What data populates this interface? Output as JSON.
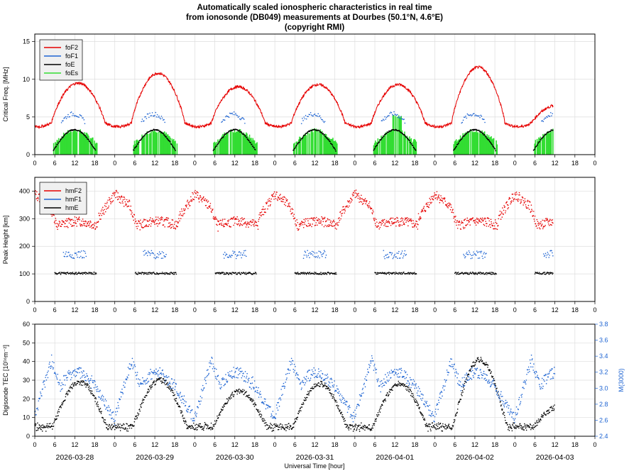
{
  "chart_data": [
    {
      "type": "line",
      "title_lines": [
        "Automatically scaled ionospheric characteristics in real time",
        "from ionosonde (DB049) measurements at Dourbes (50.1°N, 4.6°E)",
        "(copyright RMI)"
      ],
      "ylabel": "Critical Freq. [MHz]",
      "ylim": [
        0,
        16
      ],
      "yticks": [
        "0",
        "5",
        "10",
        "15"
      ],
      "xticks": [
        "0",
        "6",
        "12",
        "18",
        "0",
        "6",
        "12",
        "18",
        "0",
        "6",
        "12",
        "18",
        "0",
        "6",
        "12",
        "18",
        "0",
        "6",
        "12",
        "18",
        "0",
        "6",
        "12",
        "18",
        "0",
        "6",
        "12",
        "18",
        "0"
      ],
      "legend": [
        "foF2",
        "foF1",
        "foE",
        "foEs"
      ],
      "legend_position": "top-left",
      "series_colors": {
        "foF2": "#e60000",
        "foF1": "#1e64d2",
        "foE": "#000000",
        "foEs": "#33dd33"
      },
      "series_notes": {
        "foF2": "daily cycle ~4 MHz at night to ~9-11.5 MHz at noon",
        "foF1": "~4.5-5.5 MHz during daytime",
        "foE": "daytime arc peaking ~3.3 MHz",
        "foEs": "daytime filled bars ~2-3 MHz"
      },
      "daily_max_foF2": [
        9.5,
        10.8,
        9.0,
        9.3,
        9.3,
        11.6,
        6.6
      ]
    },
    {
      "type": "scatter",
      "ylabel": "Peak Height [km]",
      "ylim": [
        0,
        450
      ],
      "yticks": [
        "0",
        "100",
        "200",
        "300",
        "400"
      ],
      "legend": [
        "hmF2",
        "hmF1",
        "hmE"
      ],
      "legend_position": "top-left",
      "series_colors": {
        "hmF2": "#e60000",
        "hmF1": "#1e64d2",
        "hmE": "#000000"
      },
      "series_notes": {
        "hmF2": "~270-280 km by day, ~350-420 km at night",
        "hmF1": "~170-180 km daytime",
        "hmE": "~100 km daytime"
      }
    },
    {
      "type": "scatter",
      "ylabel_left": "Digisonde TEC [10¹⁶m⁻²]",
      "ylabel_right": "M(3000)",
      "xlabel": "Universal Time [hour]",
      "ylim_left": [
        0,
        60
      ],
      "yticks_left": [
        "0",
        "10",
        "20",
        "30",
        "40",
        "50",
        "60"
      ],
      "ylim_right": [
        2.4,
        3.8
      ],
      "yticks_right": [
        "2.4",
        "2.6",
        "2.8",
        "3.0",
        "3.2",
        "3.4",
        "3.6",
        "3.8"
      ],
      "series_colors": {
        "TEC": "#000000",
        "M3000": "#1e64d2"
      },
      "dates": [
        "2026-03-28",
        "2026-03-29",
        "2026-03-30",
        "2026-03-31",
        "2026-04-01",
        "2026-04-02",
        "2026-04-03"
      ],
      "daily_peak_TEC": [
        29,
        30,
        24,
        28,
        28,
        41,
        16
      ]
    }
  ]
}
